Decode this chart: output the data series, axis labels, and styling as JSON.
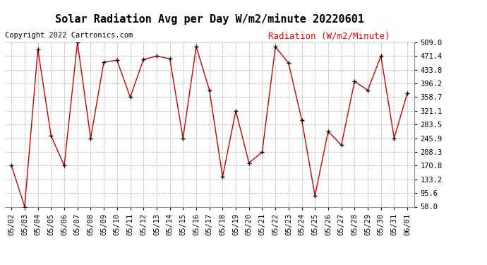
{
  "title": "Solar Radiation Avg per Day W/m2/minute 20220601",
  "copyright": "Copyright 2022 Cartronics.com",
  "legend_label": "Radiation (W/m2/Minute)",
  "dates": [
    "05/02",
    "05/03",
    "05/04",
    "05/05",
    "05/06",
    "05/07",
    "05/08",
    "05/09",
    "05/10",
    "05/11",
    "05/12",
    "05/13",
    "05/14",
    "05/15",
    "05/16",
    "05/17",
    "05/18",
    "05/19",
    "05/20",
    "05/21",
    "05/22",
    "05/23",
    "05/24",
    "05/25",
    "05/26",
    "05/27",
    "05/28",
    "05/29",
    "05/30",
    "05/31",
    "06/01"
  ],
  "values": [
    170.8,
    58.0,
    490.0,
    253.0,
    170.8,
    509.0,
    245.9,
    455.0,
    460.0,
    358.7,
    462.0,
    471.4,
    464.0,
    245.9,
    497.0,
    378.0,
    140.0,
    321.1,
    178.0,
    208.3,
    497.0,
    452.0,
    296.0,
    88.0,
    265.0,
    227.0,
    402.0,
    378.0,
    471.4,
    245.9,
    370.0
  ],
  "ylim": [
    58.0,
    509.0
  ],
  "yticks": [
    58.0,
    95.6,
    133.2,
    170.8,
    208.3,
    245.9,
    283.5,
    321.1,
    358.7,
    396.2,
    433.8,
    471.4,
    509.0
  ],
  "line_color": "#cc0000",
  "marker_color": "black",
  "bg_color": "#ffffff",
  "grid_color": "#bbbbbb",
  "title_fontsize": 11,
  "copyright_fontsize": 7.5,
  "legend_fontsize": 9,
  "tick_fontsize": 7.5
}
